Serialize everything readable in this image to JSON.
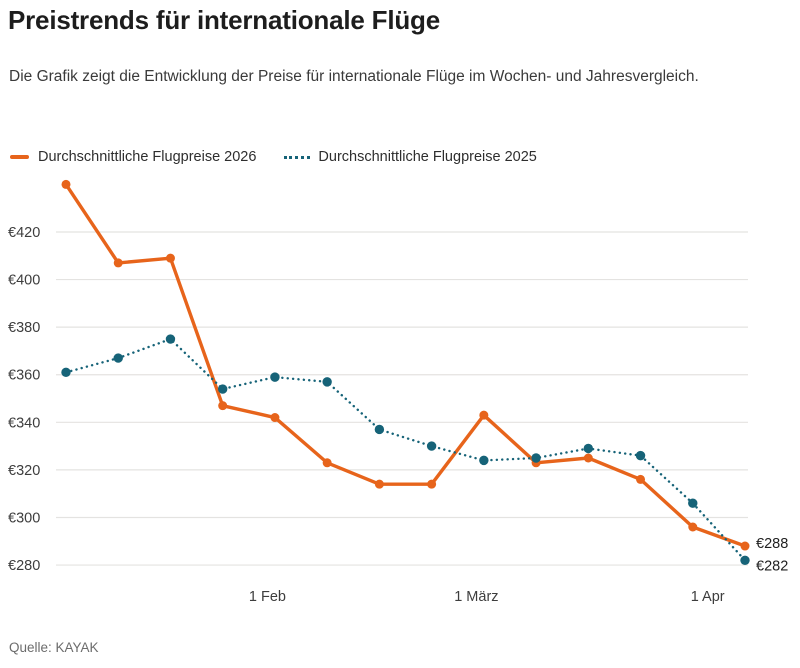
{
  "page": {
    "title": "Preistrends für internationale Flüge",
    "subtitle": "Die Grafik zeigt die Entwicklung der Preise für internationale Flüge im Wochen- und Jahresvergleich.",
    "source": "Quelle: KAYAK"
  },
  "colors": {
    "series_2026": "#e7641b",
    "series_2025": "#166378",
    "gridline": "#e4e3e1",
    "axis_text": "#3d3d3d",
    "end_label_text": "#1f1f1f"
  },
  "chart_data": {
    "type": "line",
    "currency": "€",
    "x_count": 14,
    "ylim": [
      272,
      444
    ],
    "grid": "horizontal",
    "legend_position": "top-left",
    "y_ticks": [
      {
        "value": 420,
        "label": "€420"
      },
      {
        "value": 400,
        "label": "€400"
      },
      {
        "value": 380,
        "label": "€380"
      },
      {
        "value": 360,
        "label": "€360"
      },
      {
        "value": 340,
        "label": "€340"
      },
      {
        "value": 320,
        "label": "€320"
      },
      {
        "value": 300,
        "label": "€300"
      },
      {
        "value": 280,
        "label": "€280"
      }
    ],
    "x_ticks": [
      {
        "label": "1 Feb",
        "index": 3.857
      },
      {
        "label": "1 März",
        "index": 7.857
      },
      {
        "label": "1 Apr",
        "index": 12.286
      }
    ],
    "series": [
      {
        "name": "Durchschnittliche Flugpreise 2026",
        "color": "#e7641b",
        "style": "solid",
        "values": [
          440,
          407,
          409,
          347,
          342,
          323,
          314,
          314,
          343,
          323,
          325,
          316,
          296,
          288
        ],
        "end_label": "€288"
      },
      {
        "name": "Durchschnittliche Flugpreise 2025",
        "color": "#166378",
        "style": "dotted",
        "values": [
          361,
          367,
          375,
          354,
          359,
          357,
          337,
          330,
          324,
          325,
          329,
          326,
          306,
          282
        ],
        "end_label": "€282"
      }
    ]
  }
}
